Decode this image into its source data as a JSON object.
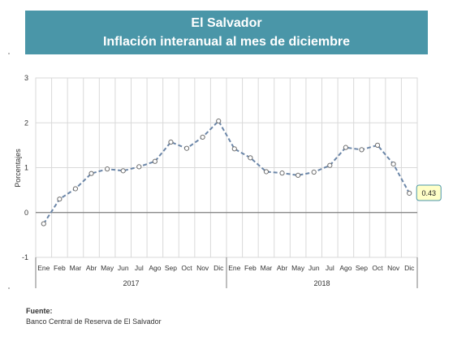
{
  "title": {
    "line1": "El Salvador",
    "line2": "Inflación interanual al mes de diciembre"
  },
  "footer": {
    "label": "Fuente:",
    "text": "Banco Central de Reserva de El Salvador"
  },
  "colors": {
    "header_bg": "#4a96a8",
    "line": "#6b86a8",
    "label_bg": "#ffffc8",
    "label_border": "#4a96a8"
  },
  "chart_data": {
    "type": "line",
    "ylabel": "Porcentajes",
    "ylim": [
      -1,
      3
    ],
    "yticks": [
      "3",
      "2",
      "1",
      "0",
      "-1"
    ],
    "grid": true,
    "categories": [
      "Ene",
      "Feb",
      "Mar",
      "Abr",
      "May",
      "Jun",
      "Jul",
      "Ago",
      "Sep",
      "Oct",
      "Nov",
      "Dic",
      "Ene",
      "Feb",
      "Mar",
      "Abr",
      "May",
      "Jun",
      "Jul",
      "Ago",
      "Sep",
      "Oct",
      "Nov",
      "Dic"
    ],
    "years": [
      "2017",
      "2018"
    ],
    "series": [
      {
        "values": [
          -0.25,
          0.3,
          0.53,
          0.87,
          0.97,
          0.93,
          1.02,
          1.14,
          1.57,
          1.43,
          1.68,
          2.04,
          1.42,
          1.22,
          0.91,
          0.88,
          0.83,
          0.9,
          1.05,
          1.45,
          1.4,
          1.5,
          1.08,
          0.43
        ]
      }
    ],
    "annotation": {
      "text": "0.43",
      "index": 23
    }
  }
}
